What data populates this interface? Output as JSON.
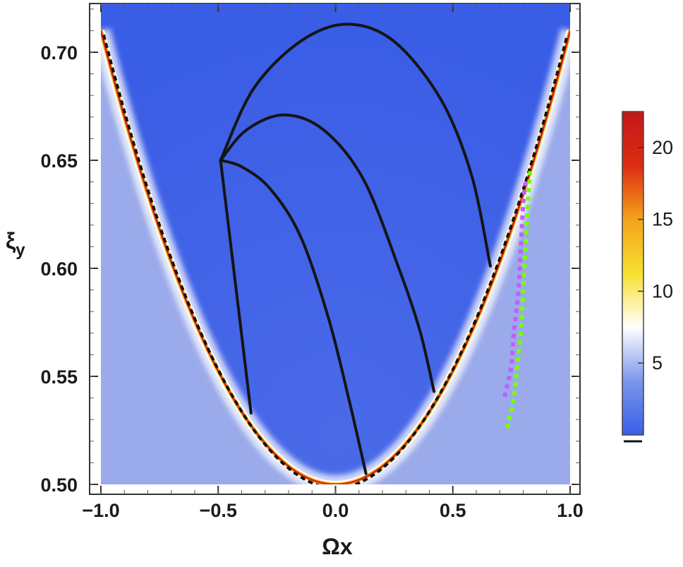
{
  "chart_data": {
    "type": "heatmap",
    "title": "",
    "xlabel": "Ωx",
    "ylabel_main": "ξ",
    "ylabel_sub": "y",
    "xlim": [
      -1.0,
      1.0
    ],
    "ylim": [
      0.5,
      0.72
    ],
    "x_ticks": [
      {
        "value": -1.0,
        "label": "−1.0"
      },
      {
        "value": -0.5,
        "label": "−0.5"
      },
      {
        "value": 0.0,
        "label": "0.0"
      },
      {
        "value": 0.5,
        "label": "0.5"
      },
      {
        "value": 1.0,
        "label": "1.0"
      }
    ],
    "y_ticks": [
      {
        "value": 0.5,
        "label": "0.50"
      },
      {
        "value": 0.55,
        "label": "0.55"
      },
      {
        "value": 0.6,
        "label": "0.60"
      },
      {
        "value": 0.65,
        "label": "0.65"
      },
      {
        "value": 0.7,
        "label": "0.70"
      }
    ],
    "boundary_curve": {
      "description_formula": "xi = 0.5 + 0.21 * x^2",
      "x_range": [
        -1.0,
        1.0
      ]
    },
    "curves": [
      {
        "name": "upper-arc",
        "points": [
          [
            -0.49,
            0.65
          ],
          [
            -0.35,
            0.683
          ],
          [
            -0.15,
            0.705
          ],
          [
            0.05,
            0.713
          ],
          [
            0.25,
            0.705
          ],
          [
            0.45,
            0.678
          ],
          [
            0.58,
            0.643
          ],
          [
            0.66,
            0.601
          ]
        ]
      },
      {
        "name": "middle-arc",
        "points": [
          [
            -0.49,
            0.65
          ],
          [
            -0.38,
            0.664
          ],
          [
            -0.22,
            0.671
          ],
          [
            -0.05,
            0.664
          ],
          [
            0.12,
            0.641
          ],
          [
            0.27,
            0.6
          ],
          [
            0.36,
            0.571
          ],
          [
            0.42,
            0.543
          ]
        ]
      },
      {
        "name": "lower-arc",
        "points": [
          [
            -0.49,
            0.65
          ],
          [
            -0.4,
            0.647
          ],
          [
            -0.28,
            0.637
          ],
          [
            -0.15,
            0.615
          ],
          [
            -0.03,
            0.577
          ],
          [
            0.06,
            0.538
          ],
          [
            0.13,
            0.505
          ]
        ]
      },
      {
        "name": "left-line",
        "points": [
          [
            -0.49,
            0.65
          ],
          [
            -0.36,
            0.533
          ]
        ]
      }
    ],
    "dotted_traces": [
      {
        "color": "#c35cff",
        "points": [
          [
            0.81,
            0.64
          ],
          [
            0.8,
            0.63
          ],
          [
            0.79,
            0.61
          ],
          [
            0.78,
            0.59
          ],
          [
            0.76,
            0.57
          ],
          [
            0.75,
            0.555
          ],
          [
            0.73,
            0.545
          ],
          [
            0.72,
            0.54
          ]
        ]
      },
      {
        "color": "#7cfc00",
        "points": [
          [
            0.83,
            0.645
          ],
          [
            0.82,
            0.63
          ],
          [
            0.81,
            0.61
          ],
          [
            0.8,
            0.59
          ],
          [
            0.79,
            0.57
          ],
          [
            0.77,
            0.55
          ],
          [
            0.76,
            0.54
          ],
          [
            0.74,
            0.53
          ],
          [
            0.73,
            0.525
          ]
        ]
      }
    ],
    "colorbar": {
      "min": 0,
      "max": 22.5,
      "ticks": [
        {
          "value": 5,
          "label": "5"
        },
        {
          "value": 10,
          "label": "10"
        },
        {
          "value": 15,
          "label": "15"
        },
        {
          "value": 20,
          "label": "20"
        }
      ],
      "colors": [
        "#3a5ee8",
        "#7a96ea",
        "#ffffff",
        "#f7e030",
        "#f4a21c",
        "#dd2c12",
        "#c21818"
      ]
    },
    "fill_colors": {
      "inside": "#3c5fe6",
      "outside": "#9aaaea"
    }
  }
}
